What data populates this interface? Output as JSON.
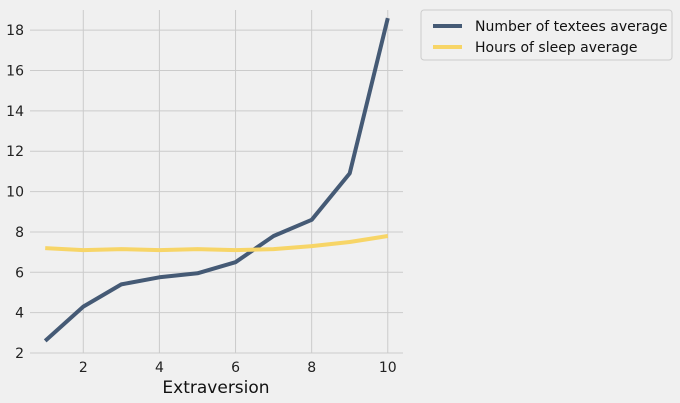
{
  "chart_data": {
    "type": "line",
    "xlabel": "Extraversion",
    "ylabel": "",
    "title": "",
    "x": [
      1,
      2,
      3,
      4,
      5,
      6,
      7,
      8,
      9,
      10
    ],
    "xlim": [
      0.6,
      10.4
    ],
    "ylim": [
      2,
      19
    ],
    "xticks": [
      2,
      4,
      6,
      8,
      10
    ],
    "yticks": [
      2,
      4,
      6,
      8,
      10,
      12,
      14,
      16,
      18
    ],
    "grid": true,
    "legend_position": "outside-top-right",
    "series": [
      {
        "name": "Number of textees average",
        "color": "#455a75",
        "values": [
          2.6,
          4.3,
          5.4,
          5.75,
          5.95,
          6.5,
          7.8,
          8.6,
          10.9,
          18.6
        ]
      },
      {
        "name": "Hours of sleep average",
        "color": "#f7d567",
        "values": [
          7.2,
          7.1,
          7.15,
          7.1,
          7.15,
          7.1,
          7.15,
          7.3,
          7.5,
          7.8
        ]
      }
    ]
  }
}
